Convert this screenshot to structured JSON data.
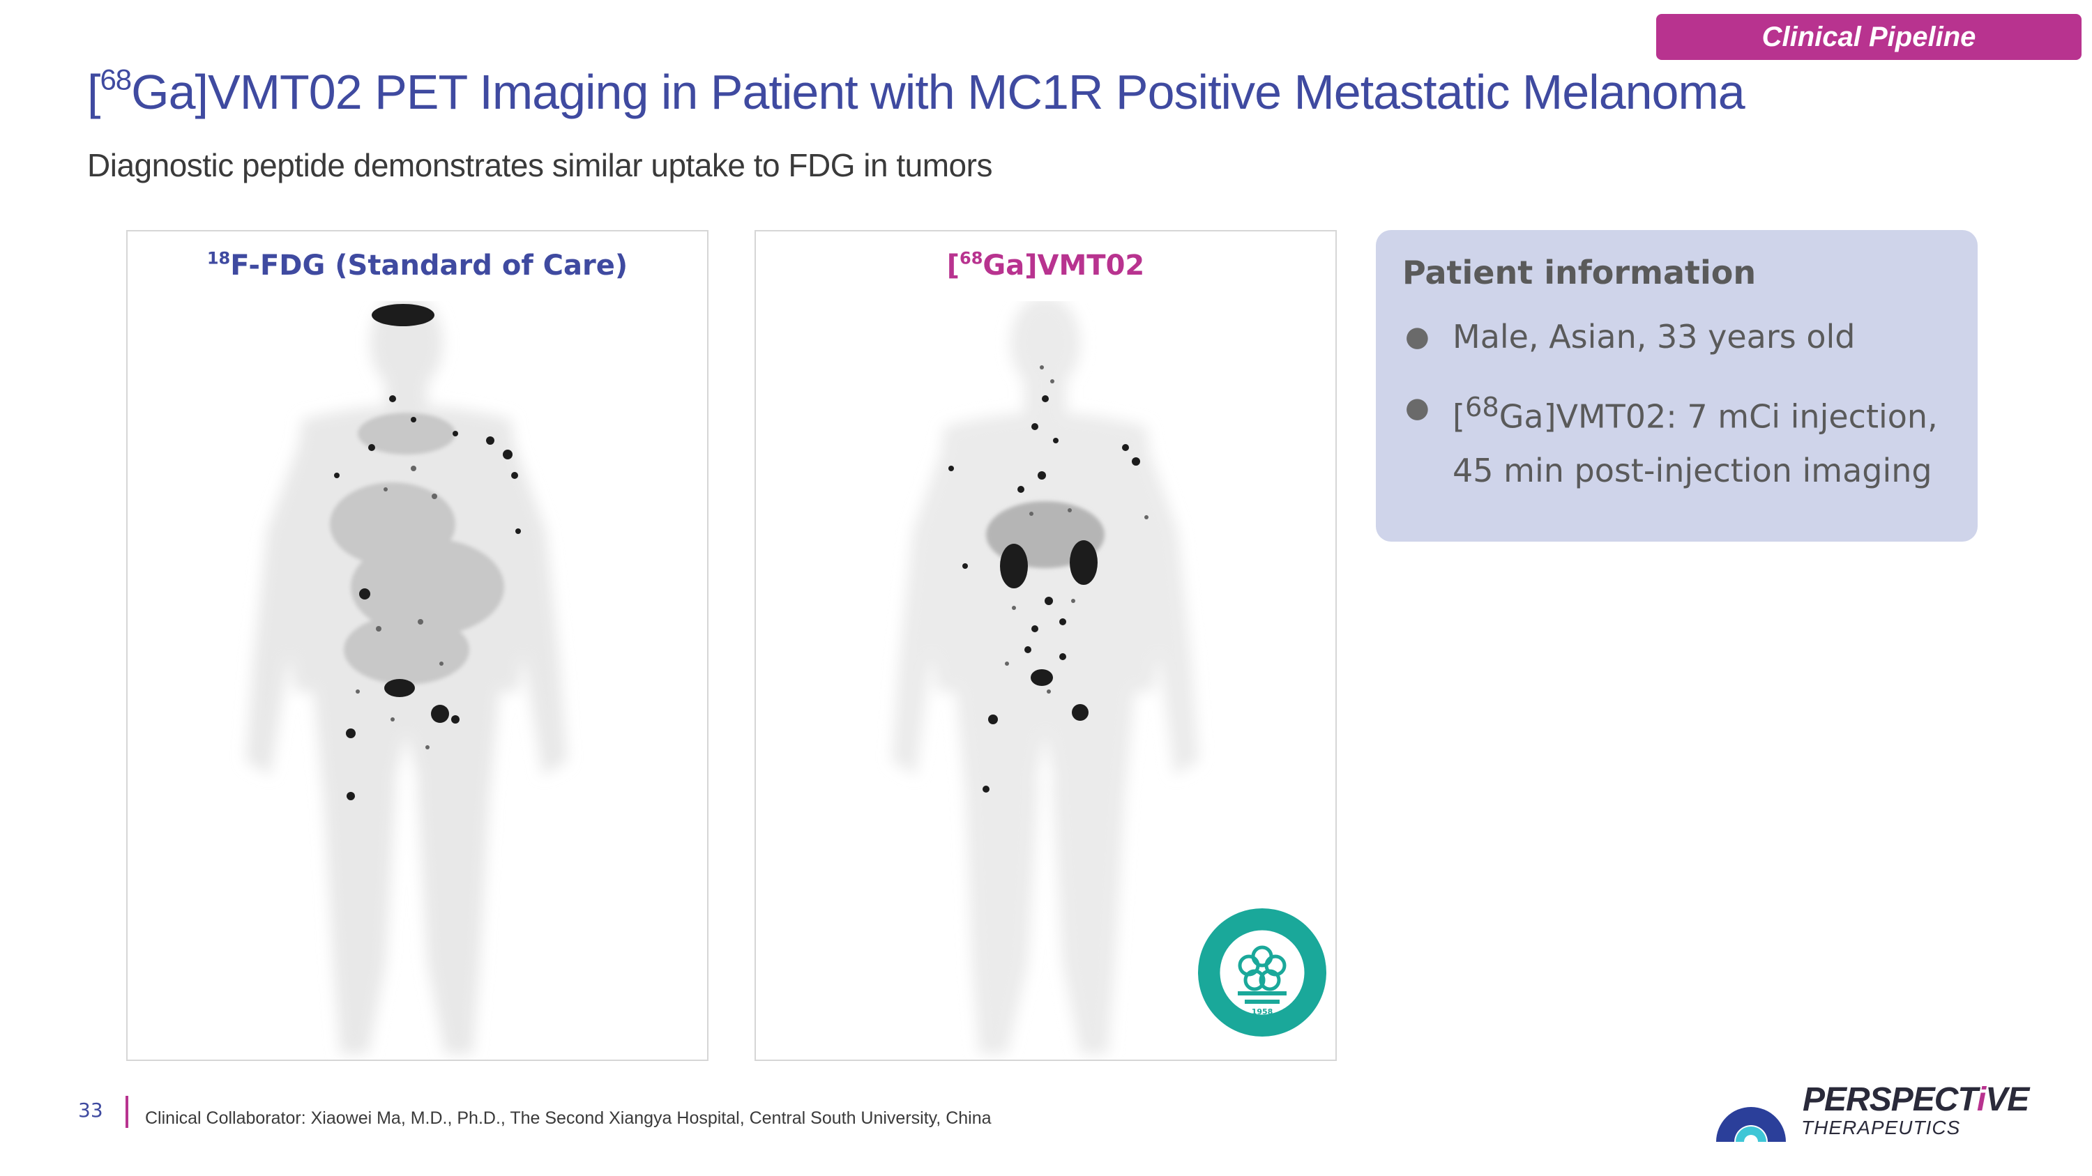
{
  "header": {
    "tag": "Clinical Pipeline",
    "title_pre": "[",
    "title_sup": "68",
    "title_post": "Ga]VMT02 PET Imaging in Patient with MC1R Positive Metastatic Melanoma",
    "subtitle": "Diagnostic peptide demonstrates similar uptake to FDG in tumors"
  },
  "panels": [
    {
      "title_pre": "",
      "title_sup": "18",
      "title_post": "F-FDG (Standard of Care)"
    },
    {
      "title_pre": "[",
      "title_sup": "68",
      "title_post": "Ga]VMT02"
    }
  ],
  "info": {
    "title": "Patient information",
    "bullets": [
      {
        "text": "Male, Asian, 33 years old"
      },
      {
        "pre": "[",
        "sup": "68",
        "post": "Ga]VMT02: 7 mCi injection,",
        "line2": "45 min post-injection imaging"
      }
    ]
  },
  "seal": {
    "year": "1958"
  },
  "footer": {
    "page": "33",
    "text": "Clinical Collaborator: Xiaowei Ma, M.D., Ph.D., The Second Xiangya Hospital, Central South University, China"
  },
  "logo": {
    "word_a": "PERSPECT",
    "word_accent": "i",
    "word_b": "VE",
    "sub": "THERAPEUTICS"
  },
  "colors": {
    "brand_blue": "#3f4aa0",
    "brand_magenta": "#b8338f",
    "info_bg": "#cfd4ea",
    "seal_teal": "#1aa89a"
  }
}
